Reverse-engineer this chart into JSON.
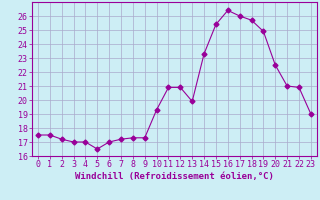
{
  "x": [
    0,
    1,
    2,
    3,
    4,
    5,
    6,
    7,
    8,
    9,
    10,
    11,
    12,
    13,
    14,
    15,
    16,
    17,
    18,
    19,
    20,
    21,
    22,
    23
  ],
  "y": [
    17.5,
    17.5,
    17.2,
    17.0,
    17.0,
    16.5,
    17.0,
    17.2,
    17.3,
    17.3,
    19.3,
    20.9,
    20.9,
    19.9,
    23.3,
    25.4,
    26.4,
    26.0,
    25.7,
    24.9,
    22.5,
    21.0,
    20.9,
    19.0
  ],
  "xlabel": "Windchill (Refroidissement éolien,°C)",
  "xlim": [
    -0.5,
    23.5
  ],
  "ylim": [
    16,
    27
  ],
  "yticks": [
    16,
    17,
    18,
    19,
    20,
    21,
    22,
    23,
    24,
    25,
    26
  ],
  "xticks": [
    0,
    1,
    2,
    3,
    4,
    5,
    6,
    7,
    8,
    9,
    10,
    11,
    12,
    13,
    14,
    15,
    16,
    17,
    18,
    19,
    20,
    21,
    22,
    23
  ],
  "line_color": "#990099",
  "marker": "D",
  "markersize": 2.5,
  "bg_color": "#cdeef5",
  "grid_color": "#aaaacc",
  "xlabel_fontsize": 6.5,
  "tick_fontsize": 6
}
